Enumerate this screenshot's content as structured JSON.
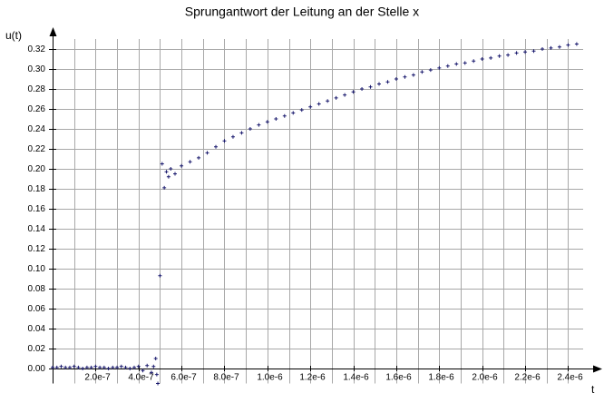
{
  "chart_data": {
    "type": "scatter",
    "title": "Sprungantwort der Leitung an der Stelle x",
    "ylabel": "u(t)",
    "xlabel": "t",
    "marker": "+",
    "color": "#1a1a6e",
    "grid": true,
    "xlim": [
      0,
      2.47e-06
    ],
    "ylim": [
      -0.015,
      0.33
    ],
    "xticks": [
      {
        "value": 2e-07,
        "label": "2.0e-7"
      },
      {
        "value": 4e-07,
        "label": "4.0e-7"
      },
      {
        "value": 6e-07,
        "label": "6.0e-7"
      },
      {
        "value": 8e-07,
        "label": "8.0e-7"
      },
      {
        "value": 1e-06,
        "label": "1.0e-6"
      },
      {
        "value": 1.2e-06,
        "label": "1.2e-6"
      },
      {
        "value": 1.4e-06,
        "label": "1.4e-6"
      },
      {
        "value": 1.6e-06,
        "label": "1.6e-6"
      },
      {
        "value": 1.8e-06,
        "label": "1.8e-6"
      },
      {
        "value": 2e-06,
        "label": "2.0e-6"
      },
      {
        "value": 2.2e-06,
        "label": "2.2e-6"
      },
      {
        "value": 2.4e-06,
        "label": "2.4e-6"
      }
    ],
    "xminorticks": [
      1e-07,
      3e-07,
      5e-07,
      7e-07,
      9e-07,
      1.1e-06,
      1.3e-06,
      1.5e-06,
      1.7e-06,
      1.9e-06,
      2.1e-06,
      2.3e-06
    ],
    "yticks": [
      {
        "value": 0,
        "label": "0.00"
      },
      {
        "value": 0.02,
        "label": "0.02"
      },
      {
        "value": 0.04,
        "label": "0.04"
      },
      {
        "value": 0.06,
        "label": "0.06"
      },
      {
        "value": 0.08,
        "label": "0.08"
      },
      {
        "value": 0.1,
        "label": "0.10"
      },
      {
        "value": 0.12,
        "label": "0.12"
      },
      {
        "value": 0.14,
        "label": "0.14"
      },
      {
        "value": 0.16,
        "label": "0.16"
      },
      {
        "value": 0.18,
        "label": "0.18"
      },
      {
        "value": 0.2,
        "label": "0.20"
      },
      {
        "value": 0.22,
        "label": "0.22"
      },
      {
        "value": 0.24,
        "label": "0.24"
      },
      {
        "value": 0.26,
        "label": "0.26"
      },
      {
        "value": 0.28,
        "label": "0.28"
      },
      {
        "value": 0.3,
        "label": "0.30"
      },
      {
        "value": 0.32,
        "label": "0.32"
      }
    ],
    "x": [
      0,
      2e-08,
      4e-08,
      6e-08,
      8e-08,
      1e-07,
      1.2e-07,
      1.4e-07,
      1.6e-07,
      1.8e-07,
      2e-07,
      2.2e-07,
      2.4e-07,
      2.6e-07,
      2.8e-07,
      3e-07,
      3.2e-07,
      3.4e-07,
      3.6e-07,
      3.8e-07,
      4e-07,
      4.2e-07,
      4.4e-07,
      4.6e-07,
      4.7e-07,
      4.8e-07,
      4.85e-07,
      4.9e-07,
      5e-07,
      5.1e-07,
      5.2e-07,
      5.3e-07,
      5.4e-07,
      5.5e-07,
      5.7e-07,
      6e-07,
      6.4e-07,
      6.8e-07,
      7.2e-07,
      7.6e-07,
      8e-07,
      8.4e-07,
      8.8e-07,
      9.2e-07,
      9.6e-07,
      1e-06,
      1.04e-06,
      1.08e-06,
      1.12e-06,
      1.16e-06,
      1.2e-06,
      1.24e-06,
      1.28e-06,
      1.32e-06,
      1.36e-06,
      1.4e-06,
      1.44e-06,
      1.48e-06,
      1.52e-06,
      1.56e-06,
      1.6e-06,
      1.64e-06,
      1.68e-06,
      1.72e-06,
      1.76e-06,
      1.8e-06,
      1.84e-06,
      1.88e-06,
      1.92e-06,
      1.96e-06,
      2e-06,
      2.04e-06,
      2.08e-06,
      2.12e-06,
      2.16e-06,
      2.2e-06,
      2.24e-06,
      2.28e-06,
      2.32e-06,
      2.36e-06,
      2.4e-06,
      2.44e-06
    ],
    "values": [
      0.001,
      0.001,
      0.002,
      0.001,
      0.001,
      0.002,
      0.001,
      0.0,
      0.001,
      0.001,
      0.002,
      0.001,
      0.001,
      0.0,
      0.001,
      0.001,
      0.002,
      0.001,
      0.0,
      0.001,
      0.002,
      -0.002,
      0.003,
      -0.004,
      0.002,
      0.01,
      -0.006,
      -0.015,
      0.093,
      0.205,
      0.181,
      0.197,
      0.192,
      0.2,
      0.195,
      0.203,
      0.207,
      0.211,
      0.216,
      0.222,
      0.228,
      0.232,
      0.236,
      0.24,
      0.244,
      0.247,
      0.25,
      0.253,
      0.256,
      0.259,
      0.262,
      0.265,
      0.268,
      0.271,
      0.274,
      0.277,
      0.28,
      0.282,
      0.285,
      0.287,
      0.29,
      0.292,
      0.294,
      0.297,
      0.299,
      0.301,
      0.303,
      0.305,
      0.306,
      0.308,
      0.31,
      0.311,
      0.313,
      0.314,
      0.316,
      0.317,
      0.318,
      0.32,
      0.321,
      0.322,
      0.324,
      0.325
    ]
  }
}
